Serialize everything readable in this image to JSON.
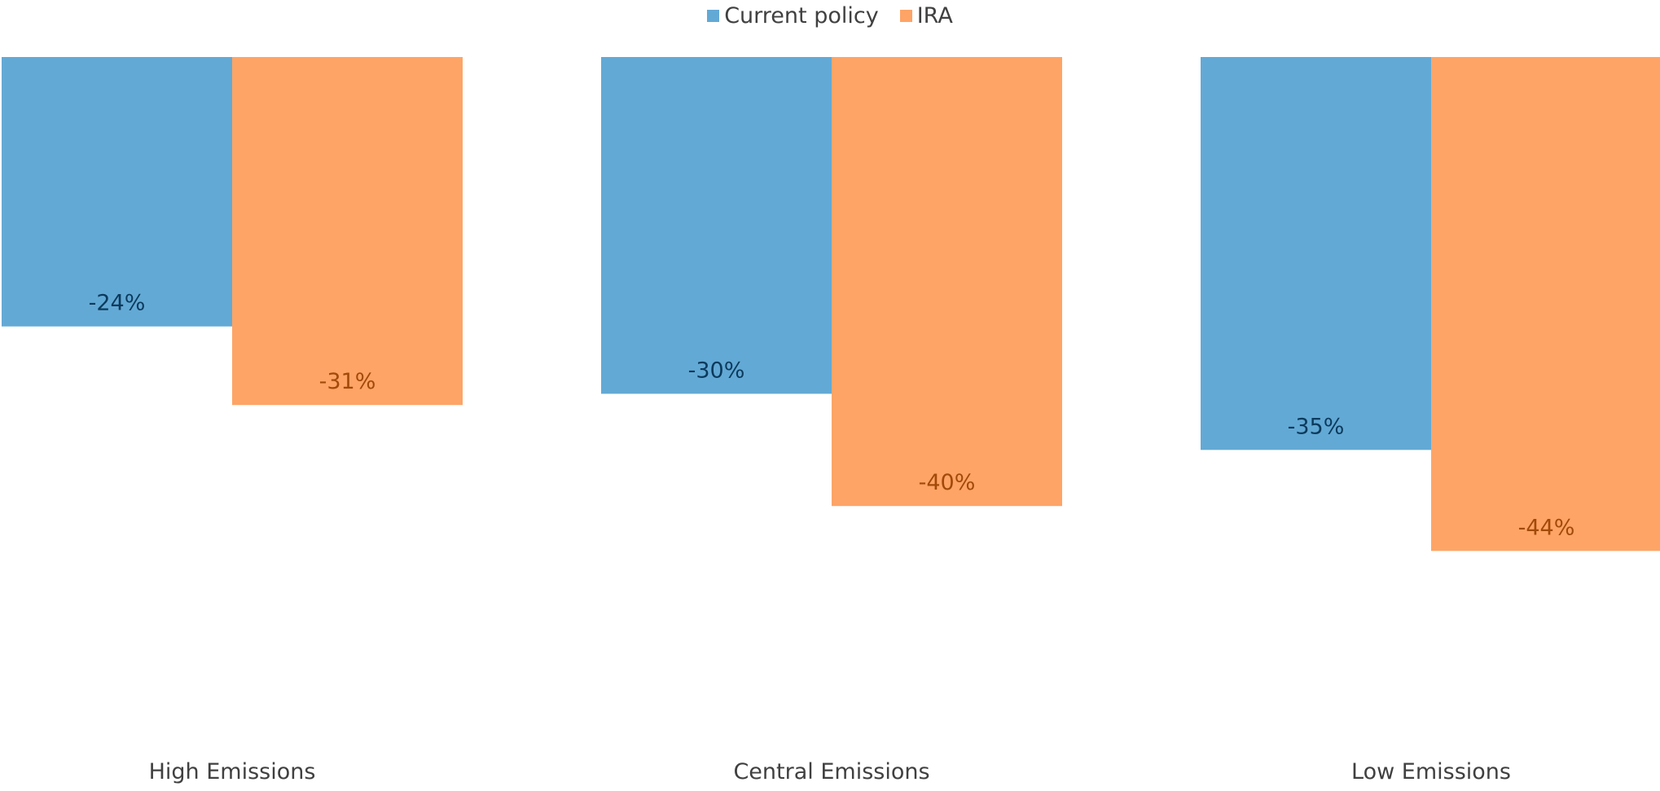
{
  "chart_data": {
    "type": "bar",
    "categories": [
      "High Emissions",
      "Central Emissions",
      "Low Emissions"
    ],
    "series": [
      {
        "name": "Current policy",
        "values": [
          -24,
          -30,
          -35
        ],
        "labels": [
          "-24%",
          "-30%",
          "-35%"
        ],
        "color": "#63A9D5",
        "label_color": "#0B3A5C"
      },
      {
        "name": "IRA",
        "values": [
          -31,
          -40,
          -44
        ],
        "labels": [
          "-31%",
          "-40%",
          "-44%"
        ],
        "color": "#FEA466",
        "label_color": "#A24A0A"
      }
    ],
    "ylim": [
      -50,
      0
    ],
    "grid": false,
    "legend_position": "top-center",
    "show_y_axis": false
  }
}
